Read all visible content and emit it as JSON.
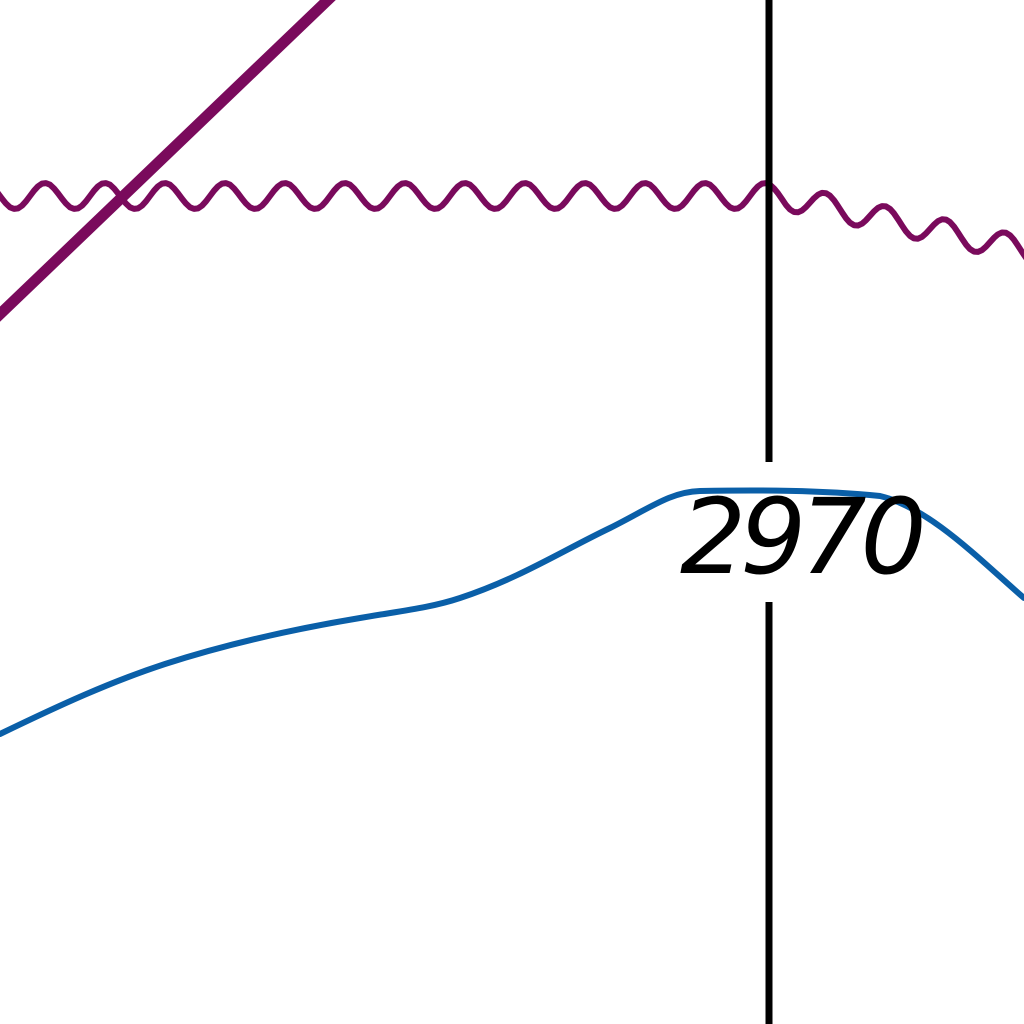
{
  "map": {
    "contour_label": "2970",
    "colors": {
      "background": "#ffffff",
      "boundary_line": "#7a0a5c",
      "contour_line": "#0a5fa8",
      "grid_line": "#000000",
      "label_text": "#000000"
    },
    "features": [
      "diagonal-road-line",
      "wavy-boundary-line",
      "contour-line",
      "vertical-grid-line"
    ]
  }
}
